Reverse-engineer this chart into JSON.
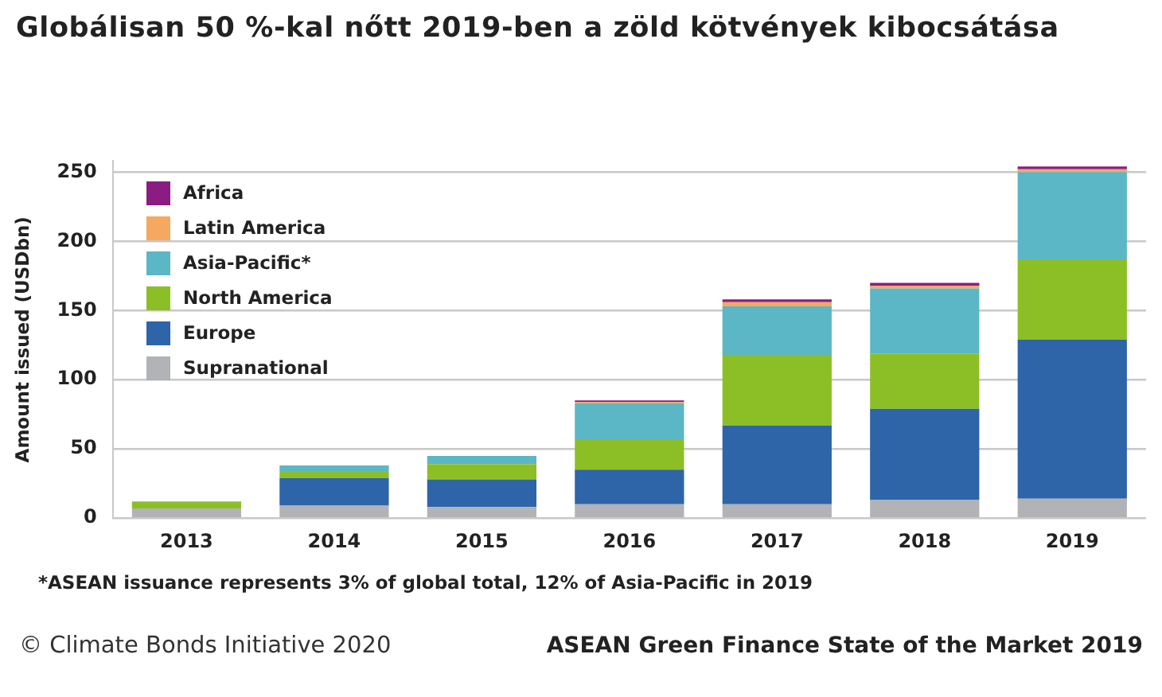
{
  "chart_data": {
    "type": "bar",
    "stacked": true,
    "title": "Globálisan 50 %-kal nőtt 2019-ben a zöld kötvények kibocsátása",
    "ylabel": "Amount issued (USDbn)",
    "categories": [
      "2013",
      "2014",
      "2015",
      "2016",
      "2017",
      "2018",
      "2019"
    ],
    "series": [
      {
        "name": "Supranational",
        "color": "#b1b3b6",
        "values": [
          7,
          9,
          8,
          10,
          10,
          13,
          14
        ]
      },
      {
        "name": "Europe",
        "color": "#2e64a8",
        "values": [
          0,
          20,
          20,
          25,
          57,
          66,
          115
        ]
      },
      {
        "name": "North America",
        "color": "#8cbf26",
        "values": [
          5,
          5,
          11,
          22,
          51,
          40,
          58
        ]
      },
      {
        "name": "Asia-Pacific*",
        "color": "#5bb7c5",
        "values": [
          0,
          4,
          6,
          26,
          35,
          47,
          63
        ]
      },
      {
        "name": "Latin America",
        "color": "#f5a85f",
        "values": [
          0,
          0,
          0,
          1,
          3,
          2,
          2
        ]
      },
      {
        "name": "Africa",
        "color": "#8b1d82",
        "values": [
          0,
          0,
          0,
          1,
          2,
          2,
          2
        ]
      }
    ],
    "ylim": [
      0,
      258
    ],
    "yticks": [
      0,
      50,
      100,
      150,
      200,
      250
    ],
    "grid": "y",
    "legend": "top left",
    "annotations": [
      "*ASEAN issuance represents 3% of global total, 12% of Asia-Pacific in 2019",
      "© Climate Bonds Initiative 2020",
      "ASEAN Green Finance State of the Market 2019"
    ]
  }
}
